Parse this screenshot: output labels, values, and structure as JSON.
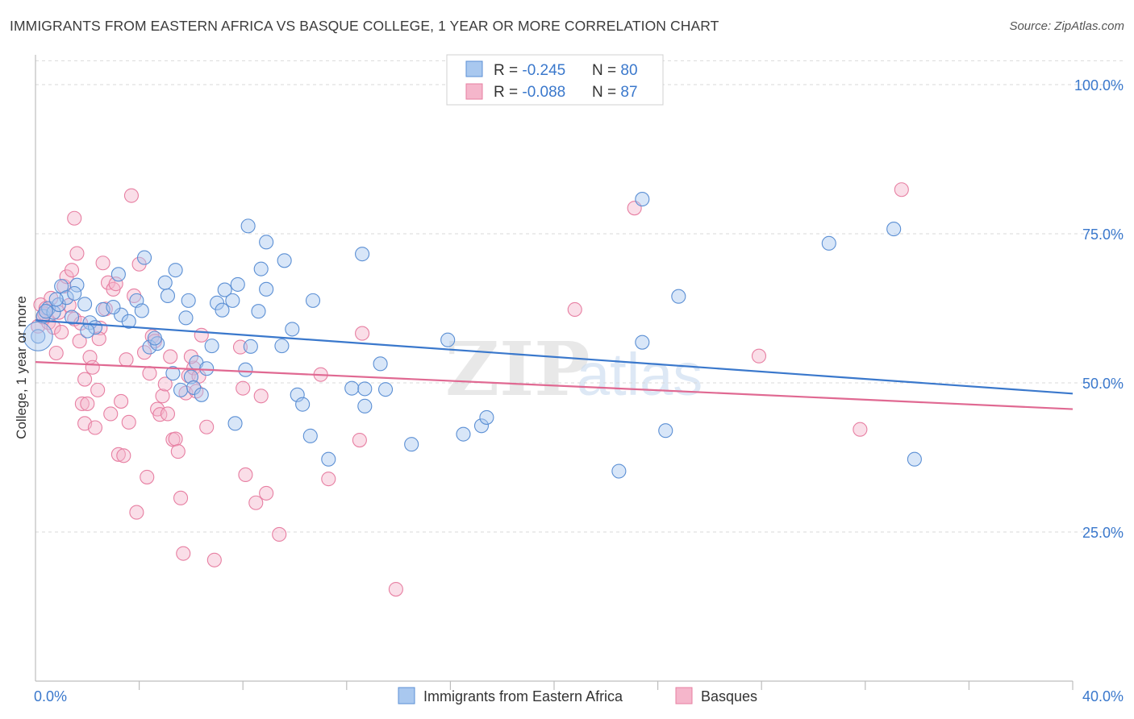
{
  "title": "IMMIGRANTS FROM EASTERN AFRICA VS BASQUE COLLEGE, 1 YEAR OR MORE CORRELATION CHART",
  "source": "Source: ZipAtlas.com",
  "watermark": {
    "zip": "ZIP",
    "atlas": "atlas"
  },
  "legend_box": {
    "rows": [
      {
        "r_label": "R = ",
        "r_value": "-0.245",
        "n_label": "N = ",
        "n_value": "80"
      },
      {
        "r_label": "R = ",
        "r_value": "-0.088",
        "n_label": "N = ",
        "n_value": "87"
      }
    ]
  },
  "colors": {
    "blue_fill": "#a9c8ef",
    "blue_stroke": "#5b8fd4",
    "blue_line": "#3a78cc",
    "pink_fill": "#f5b6cb",
    "pink_stroke": "#e77fa2",
    "pink_line": "#e06992",
    "axis_text": "#3a78cc",
    "grid": "#d9d9d9"
  },
  "chart_data": {
    "type": "scatter",
    "title": "IMMIGRANTS FROM EASTERN AFRICA VS BASQUE COLLEGE, 1 YEAR OR MORE CORRELATION CHART",
    "xlabel": "",
    "ylabel": "College, 1 year or more",
    "xlim": [
      0,
      40
    ],
    "ylim": [
      0,
      105
    ],
    "x_tick_labels": [
      "0.0%",
      "40.0%"
    ],
    "y_tick_values": [
      25,
      50,
      75,
      100
    ],
    "y_tick_labels": [
      "25.0%",
      "50.0%",
      "75.0%",
      "100.0%"
    ],
    "grid": true,
    "legend_position": "bottom-center",
    "series": [
      {
        "name": "Immigrants from Eastern Africa",
        "color": "#a9c8ef",
        "trend": {
          "x": [
            0,
            40
          ],
          "y": [
            60.5,
            48.2
          ]
        },
        "points": [
          [
            0.1,
            57.8
          ],
          [
            0.3,
            61.2
          ],
          [
            0.5,
            62.5
          ],
          [
            0.7,
            61.8
          ],
          [
            0.9,
            63.1
          ],
          [
            1.0,
            66.2
          ],
          [
            1.2,
            64.3
          ],
          [
            1.4,
            61.0
          ],
          [
            1.6,
            66.4
          ],
          [
            1.9,
            63.2
          ],
          [
            2.1,
            60.1
          ],
          [
            2.3,
            59.3
          ],
          [
            2.6,
            62.3
          ],
          [
            3.2,
            68.2
          ],
          [
            3.3,
            61.4
          ],
          [
            3.6,
            60.3
          ],
          [
            3.9,
            63.8
          ],
          [
            4.1,
            62.1
          ],
          [
            4.2,
            71.0
          ],
          [
            4.4,
            56.0
          ],
          [
            4.7,
            56.6
          ],
          [
            5.0,
            66.8
          ],
          [
            5.1,
            64.6
          ],
          [
            5.3,
            51.6
          ],
          [
            5.4,
            68.9
          ],
          [
            5.6,
            48.8
          ],
          [
            5.8,
            60.9
          ],
          [
            5.9,
            63.8
          ],
          [
            6.0,
            51.0
          ],
          [
            6.1,
            49.2
          ],
          [
            6.2,
            53.4
          ],
          [
            6.4,
            48.0
          ],
          [
            6.6,
            52.4
          ],
          [
            7.0,
            63.4
          ],
          [
            7.2,
            62.2
          ],
          [
            7.3,
            65.6
          ],
          [
            7.6,
            63.8
          ],
          [
            7.7,
            43.2
          ],
          [
            7.8,
            66.5
          ],
          [
            8.1,
            52.2
          ],
          [
            8.2,
            76.3
          ],
          [
            8.3,
            56.1
          ],
          [
            8.6,
            62.0
          ],
          [
            8.7,
            69.1
          ],
          [
            8.9,
            65.7
          ],
          [
            8.9,
            73.6
          ],
          [
            9.5,
            56.2
          ],
          [
            9.6,
            70.5
          ],
          [
            9.9,
            59.0
          ],
          [
            10.1,
            48.0
          ],
          [
            10.3,
            46.4
          ],
          [
            10.6,
            41.1
          ],
          [
            10.7,
            63.8
          ],
          [
            11.3,
            37.2
          ],
          [
            12.2,
            49.1
          ],
          [
            12.6,
            71.6
          ],
          [
            12.7,
            46.1
          ],
          [
            12.7,
            49.0
          ],
          [
            13.3,
            53.2
          ],
          [
            13.5,
            48.9
          ],
          [
            14.5,
            39.7
          ],
          [
            15.9,
            57.2
          ],
          [
            16.5,
            41.4
          ],
          [
            17.2,
            42.8
          ],
          [
            17.4,
            44.2
          ],
          [
            22.5,
            35.2
          ],
          [
            23.4,
            56.8
          ],
          [
            23.4,
            80.8
          ],
          [
            24.3,
            42.0
          ],
          [
            24.8,
            64.5
          ],
          [
            30.6,
            73.4
          ],
          [
            33.1,
            75.8
          ],
          [
            33.9,
            37.2
          ],
          [
            0.4,
            62.0
          ],
          [
            0.8,
            64.0
          ],
          [
            1.5,
            65.0
          ],
          [
            2.0,
            58.7
          ],
          [
            3.0,
            62.7
          ],
          [
            4.6,
            57.5
          ],
          [
            6.8,
            56.2
          ]
        ]
      },
      {
        "name": "Basques",
        "color": "#f5b6cb",
        "trend": {
          "x": [
            0,
            40
          ],
          "y": [
            53.5,
            45.6
          ]
        },
        "points": [
          [
            0.1,
            59.5
          ],
          [
            0.2,
            63.1
          ],
          [
            0.3,
            61.0
          ],
          [
            0.4,
            62.5
          ],
          [
            0.5,
            60.1
          ],
          [
            0.6,
            64.2
          ],
          [
            0.7,
            59.3
          ],
          [
            0.8,
            55.0
          ],
          [
            0.9,
            61.8
          ],
          [
            1.0,
            58.5
          ],
          [
            1.1,
            66.2
          ],
          [
            1.2,
            67.8
          ],
          [
            1.3,
            63.0
          ],
          [
            1.4,
            68.9
          ],
          [
            1.5,
            60.7
          ],
          [
            1.5,
            77.6
          ],
          [
            1.6,
            71.7
          ],
          [
            1.7,
            57.0
          ],
          [
            1.8,
            46.5
          ],
          [
            1.9,
            43.2
          ],
          [
            1.9,
            50.6
          ],
          [
            2.0,
            46.5
          ],
          [
            2.1,
            54.3
          ],
          [
            2.2,
            52.6
          ],
          [
            2.3,
            42.5
          ],
          [
            2.4,
            48.8
          ],
          [
            2.5,
            59.2
          ],
          [
            2.6,
            70.1
          ],
          [
            2.7,
            62.4
          ],
          [
            2.8,
            66.8
          ],
          [
            2.9,
            44.8
          ],
          [
            3.0,
            65.7
          ],
          [
            3.1,
            66.6
          ],
          [
            3.2,
            38.0
          ],
          [
            3.3,
            46.9
          ],
          [
            3.4,
            37.8
          ],
          [
            3.5,
            53.9
          ],
          [
            3.6,
            43.4
          ],
          [
            3.7,
            81.4
          ],
          [
            3.8,
            64.6
          ],
          [
            3.9,
            28.3
          ],
          [
            4.0,
            69.9
          ],
          [
            4.2,
            55.1
          ],
          [
            4.3,
            34.2
          ],
          [
            4.4,
            51.6
          ],
          [
            4.5,
            57.8
          ],
          [
            4.6,
            57.0
          ],
          [
            4.7,
            45.6
          ],
          [
            4.8,
            44.7
          ],
          [
            4.9,
            47.8
          ],
          [
            5.0,
            49.8
          ],
          [
            5.1,
            44.8
          ],
          [
            5.2,
            54.4
          ],
          [
            5.3,
            40.5
          ],
          [
            5.4,
            40.6
          ],
          [
            5.5,
            38.5
          ],
          [
            5.6,
            30.7
          ],
          [
            5.7,
            21.4
          ],
          [
            5.8,
            48.3
          ],
          [
            5.9,
            51.2
          ],
          [
            6.1,
            52.5
          ],
          [
            6.2,
            48.6
          ],
          [
            6.3,
            51.1
          ],
          [
            6.4,
            58.0
          ],
          [
            6.6,
            42.6
          ],
          [
            6.9,
            20.3
          ],
          [
            7.9,
            56.0
          ],
          [
            8.0,
            49.1
          ],
          [
            8.1,
            34.6
          ],
          [
            8.5,
            29.9
          ],
          [
            8.7,
            47.8
          ],
          [
            8.9,
            31.5
          ],
          [
            9.4,
            24.6
          ],
          [
            11.0,
            51.4
          ],
          [
            11.3,
            33.9
          ],
          [
            12.5,
            40.4
          ],
          [
            12.6,
            58.3
          ],
          [
            13.9,
            15.4
          ],
          [
            20.8,
            62.3
          ],
          [
            23.1,
            79.3
          ],
          [
            27.9,
            54.5
          ],
          [
            31.8,
            42.2
          ],
          [
            33.4,
            82.4
          ],
          [
            0.35,
            61.6
          ],
          [
            1.75,
            60.0
          ],
          [
            2.45,
            57.4
          ],
          [
            6.0,
            54.4
          ]
        ]
      }
    ]
  }
}
